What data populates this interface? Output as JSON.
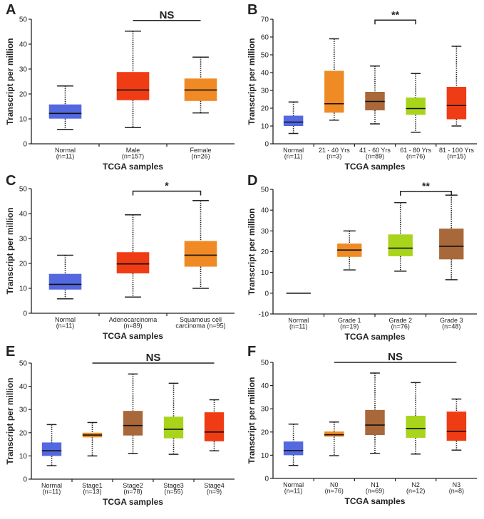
{
  "chart_data": [
    {
      "type": "box",
      "panel_label": "A",
      "ylabel": "Transcript per million",
      "xlabel": "TCGA samples",
      "ylim": [
        0,
        50
      ],
      "yticks": [
        0,
        10,
        20,
        30,
        40,
        50
      ],
      "categories": [
        {
          "lines": [
            "Normal",
            "(n=11)"
          ],
          "color": "#5468e0",
          "stats": [
            5.8,
            10.1,
            12.2,
            15.8,
            23.2
          ]
        },
        {
          "lines": [
            "Male",
            "(n=157)"
          ],
          "color": "#f03c14",
          "stats": [
            6.5,
            17.5,
            21.6,
            28.8,
            45.2
          ]
        },
        {
          "lines": [
            "Female",
            "(n=26)"
          ],
          "color": "#f08a24",
          "stats": [
            12.4,
            17.2,
            21.6,
            26.2,
            34.8
          ]
        }
      ],
      "significance": {
        "label": "NS",
        "from": 1,
        "to": 2,
        "y": 49.5,
        "bracket": false
      }
    },
    {
      "type": "box",
      "panel_label": "B",
      "ylabel": "Transcript per million",
      "xlabel": "TCGA samples",
      "ylim": [
        0,
        70
      ],
      "yticks": [
        0,
        10,
        20,
        30,
        40,
        50,
        60,
        70
      ],
      "categories": [
        {
          "lines": [
            "Normal",
            "(n=11)"
          ],
          "color": "#5468e0",
          "stats": [
            5.8,
            10,
            12.2,
            15.8,
            23.5
          ]
        },
        {
          "lines": [
            "21 - 40 Yrs",
            "(n=3)"
          ],
          "color": "#f08a24",
          "stats": [
            13.3,
            17.5,
            22.5,
            41,
            59
          ]
        },
        {
          "lines": [
            "41 - 60 Yrs",
            "(n=89)"
          ],
          "color": "#a8683a",
          "stats": [
            11.2,
            18.8,
            23.8,
            29.2,
            43.7
          ]
        },
        {
          "lines": [
            "61 - 80 Yrs",
            "(n=76)"
          ],
          "color": "#a8d41c",
          "stats": [
            6.5,
            16.3,
            19.8,
            26,
            39.5
          ]
        },
        {
          "lines": [
            "81 - 100 Yrs",
            "(n=15)"
          ],
          "color": "#f03c14",
          "stats": [
            10,
            13.8,
            21.5,
            32,
            54.8
          ]
        }
      ],
      "significance": {
        "label": "**",
        "from": 2,
        "to": 3,
        "y": 69.5,
        "bracket": true
      }
    },
    {
      "type": "box",
      "panel_label": "C",
      "ylabel": "Transcript per million",
      "xlabel": "TCGA samples",
      "ylim": [
        0,
        50
      ],
      "yticks": [
        0,
        10,
        20,
        30,
        40,
        50
      ],
      "categories": [
        {
          "lines": [
            "Normal",
            "(n=11)"
          ],
          "color": "#5468e0",
          "stats": [
            5.8,
            9.5,
            11.6,
            15.8,
            23.3
          ]
        },
        {
          "lines": [
            "Adenocarcinoma",
            "(n=89)"
          ],
          "color": "#f03c14",
          "stats": [
            6.5,
            16,
            19.8,
            24.5,
            39.5
          ]
        },
        {
          "lines": [
            "Squamous cell",
            "carcinoma (n=95)"
          ],
          "color": "#f08a24",
          "stats": [
            10,
            18.7,
            23.3,
            29,
            45.2
          ]
        }
      ],
      "significance": {
        "label": "*",
        "from": 1,
        "to": 2,
        "y": 49,
        "bracket": true
      }
    },
    {
      "type": "box",
      "panel_label": "D",
      "ylabel": "Transcript per million",
      "xlabel": "TCGA samples",
      "ylim": [
        -10,
        50
      ],
      "yticks": [
        -10,
        0,
        10,
        20,
        30,
        40,
        50
      ],
      "categories": [
        {
          "lines": [
            "Normal",
            "(n=11)"
          ],
          "color": "#5468e0",
          "stats": [
            0,
            0,
            0,
            0,
            0
          ]
        },
        {
          "lines": [
            "Grade 1",
            "(n=19)"
          ],
          "color": "#f08a24",
          "stats": [
            11.2,
            17.5,
            20.8,
            23.9,
            30
          ]
        },
        {
          "lines": [
            "Grade 2",
            "(n=76)"
          ],
          "color": "#a8d41c",
          "stats": [
            10.6,
            17.8,
            21.7,
            28.3,
            43.6
          ]
        },
        {
          "lines": [
            "Grade 3",
            "(n=48)"
          ],
          "color": "#a8683a",
          "stats": [
            6.5,
            16.3,
            22.6,
            31.1,
            47.2
          ]
        }
      ],
      "significance": {
        "label": "**",
        "from": 2,
        "to": 3,
        "y": 49,
        "bracket": true
      }
    },
    {
      "type": "box",
      "panel_label": "E",
      "ylabel": "Transcript per million",
      "xlabel": "TCGA samples",
      "ylim": [
        0,
        50
      ],
      "yticks": [
        0,
        10,
        20,
        30,
        40,
        50
      ],
      "categories": [
        {
          "lines": [
            "Normal",
            "(n=11)"
          ],
          "color": "#5468e0",
          "stats": [
            5.8,
            10,
            12.2,
            15.8,
            23.5
          ]
        },
        {
          "lines": [
            "Stage1",
            "(n=13)"
          ],
          "color": "#f08a24",
          "stats": [
            10,
            18,
            19,
            20,
            24.4
          ]
        },
        {
          "lines": [
            "Stage2",
            "(n=78)"
          ],
          "color": "#a8683a",
          "stats": [
            11,
            18.8,
            23.1,
            29.4,
            45.3
          ]
        },
        {
          "lines": [
            "Stage3",
            "(n=55)"
          ],
          "color": "#a8d41c",
          "stats": [
            10.7,
            17.6,
            21.5,
            26.9,
            41.3
          ]
        },
        {
          "lines": [
            "Stage4",
            "(n=9)"
          ],
          "color": "#f03c14",
          "stats": [
            12.2,
            16.3,
            20.3,
            28.8,
            34.2
          ]
        }
      ],
      "significance": {
        "label": "NS",
        "from": 1,
        "to": 4,
        "y": 50,
        "bracket": false
      }
    },
    {
      "type": "box",
      "panel_label": "F",
      "ylabel": "Transcript per million",
      "xlabel": "TCGA samples",
      "ylim": [
        0,
        50
      ],
      "yticks": [
        0,
        10,
        20,
        30,
        40,
        50
      ],
      "categories": [
        {
          "lines": [
            "Normal",
            "(n=11)"
          ],
          "color": "#5468e0",
          "stats": [
            5.6,
            10,
            12,
            15.9,
            23.4
          ]
        },
        {
          "lines": [
            "N0",
            "(n=76)"
          ],
          "color": "#f08a24",
          "stats": [
            9.8,
            18,
            18.8,
            20.2,
            24.3
          ]
        },
        {
          "lines": [
            "N1",
            "(n=69)"
          ],
          "color": "#a8683a",
          "stats": [
            10.8,
            18.7,
            23,
            29.5,
            45.4
          ]
        },
        {
          "lines": [
            "N2",
            "(n=12)"
          ],
          "color": "#a8d41c",
          "stats": [
            10.5,
            17.5,
            21.5,
            27,
            41.3
          ]
        },
        {
          "lines": [
            "N3",
            "(n=8)"
          ],
          "color": "#f03c14",
          "stats": [
            12.2,
            16.2,
            20.3,
            28.8,
            34.2
          ]
        }
      ],
      "significance": {
        "label": "NS",
        "from": 1,
        "to": 4,
        "y": 50,
        "bracket": false
      }
    }
  ]
}
